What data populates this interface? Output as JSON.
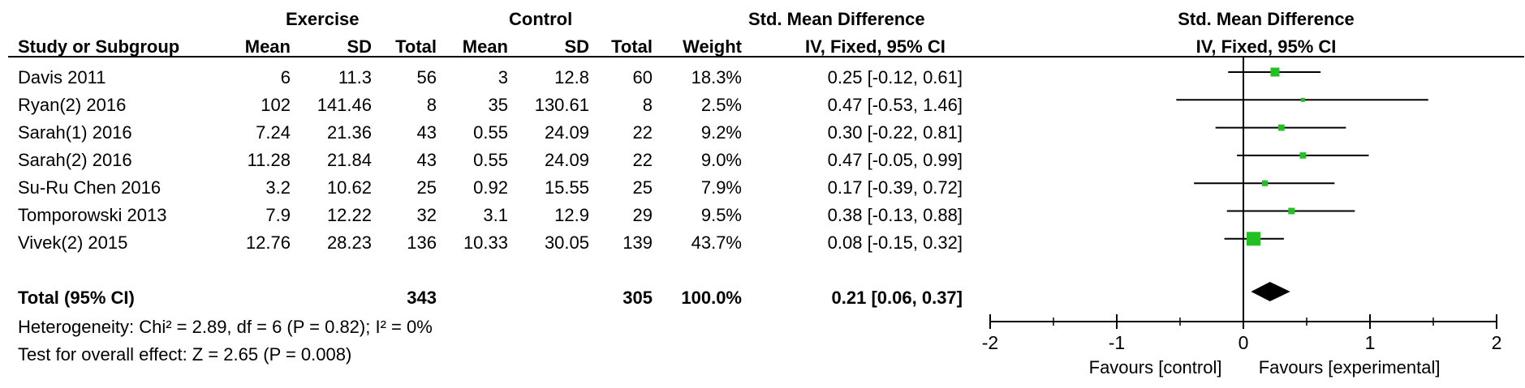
{
  "header": {
    "group1": "Exercise",
    "group2": "Control",
    "effect_title": "Std. Mean Difference",
    "effect_subtitle": "IV, Fixed, 95% CI",
    "plot_title": "Std. Mean Difference",
    "plot_subtitle": "IV, Fixed, 95% CI",
    "col_study": "Study or Subgroup",
    "col_mean1": "Mean",
    "col_sd1": "SD",
    "col_total1": "Total",
    "col_mean2": "Mean",
    "col_sd2": "SD",
    "col_total2": "Total",
    "col_weight": "Weight"
  },
  "studies": [
    {
      "name": "Davis 2011",
      "mean1": "6",
      "sd1": "11.3",
      "n1": "56",
      "mean2": "3",
      "sd2": "12.8",
      "n2": "60",
      "weight": "18.3%",
      "ci_text": "0.25 [-0.12, 0.61]"
    },
    {
      "name": "Ryan(2) 2016",
      "mean1": "102",
      "sd1": "141.46",
      "n1": "8",
      "mean2": "35",
      "sd2": "130.61",
      "n2": "8",
      "weight": "2.5%",
      "ci_text": "0.47 [-0.53, 1.46]"
    },
    {
      "name": "Sarah(1) 2016",
      "mean1": "7.24",
      "sd1": "21.36",
      "n1": "43",
      "mean2": "0.55",
      "sd2": "24.09",
      "n2": "22",
      "weight": "9.2%",
      "ci_text": "0.30 [-0.22, 0.81]"
    },
    {
      "name": "Sarah(2) 2016",
      "mean1": "11.28",
      "sd1": "21.84",
      "n1": "43",
      "mean2": "0.55",
      "sd2": "24.09",
      "n2": "22",
      "weight": "9.0%",
      "ci_text": "0.47 [-0.05, 0.99]"
    },
    {
      "name": "Su-Ru Chen 2016",
      "mean1": "3.2",
      "sd1": "10.62",
      "n1": "25",
      "mean2": "0.92",
      "sd2": "15.55",
      "n2": "25",
      "weight": "7.9%",
      "ci_text": "0.17 [-0.39, 0.72]"
    },
    {
      "name": "Tomporowski 2013",
      "mean1": "7.9",
      "sd1": "12.22",
      "n1": "32",
      "mean2": "3.1",
      "sd2": "12.9",
      "n2": "29",
      "weight": "9.5%",
      "ci_text": "0.38 [-0.13, 0.88]"
    },
    {
      "name": "Vivek(2) 2015",
      "mean1": "12.76",
      "sd1": "28.23",
      "n1": "136",
      "mean2": "10.33",
      "sd2": "30.05",
      "n2": "139",
      "weight": "43.7%",
      "ci_text": "0.08 [-0.15, 0.32]"
    }
  ],
  "total": {
    "label": "Total (95% CI)",
    "n1": "343",
    "n2": "305",
    "weight": "100.0%",
    "ci_text": "0.21 [0.06, 0.37]"
  },
  "heterogeneity": "Heterogeneity: Chi² = 2.89, df = 6 (P = 0.82); I² = 0%",
  "overall_effect": "Test for overall effect: Z = 2.65 (P = 0.008)",
  "chart_data": {
    "type": "forest",
    "x_range": [
      -2,
      2
    ],
    "x_ticks": [
      "-2",
      "-1",
      "0",
      "1",
      "2"
    ],
    "xlabel_left": "Favours [control]",
    "xlabel_right": "Favours [experimental]",
    "marker_color": "#22c022",
    "diamond_color": "#000000",
    "series": [
      {
        "study": "Davis 2011",
        "estimate": 0.25,
        "lower": -0.12,
        "upper": 0.61,
        "weight": 18.3
      },
      {
        "study": "Ryan(2) 2016",
        "estimate": 0.47,
        "lower": -0.53,
        "upper": 1.46,
        "weight": 2.5
      },
      {
        "study": "Sarah(1) 2016",
        "estimate": 0.3,
        "lower": -0.22,
        "upper": 0.81,
        "weight": 9.2
      },
      {
        "study": "Sarah(2) 2016",
        "estimate": 0.47,
        "lower": -0.05,
        "upper": 0.99,
        "weight": 9.0
      },
      {
        "study": "Su-Ru Chen 2016",
        "estimate": 0.17,
        "lower": -0.39,
        "upper": 0.72,
        "weight": 7.9
      },
      {
        "study": "Tomporowski 2013",
        "estimate": 0.38,
        "lower": -0.13,
        "upper": 0.88,
        "weight": 9.5
      },
      {
        "study": "Vivek(2) 2015",
        "estimate": 0.08,
        "lower": -0.15,
        "upper": 0.32,
        "weight": 43.7
      }
    ],
    "pooled": {
      "estimate": 0.21,
      "lower": 0.06,
      "upper": 0.37
    }
  }
}
